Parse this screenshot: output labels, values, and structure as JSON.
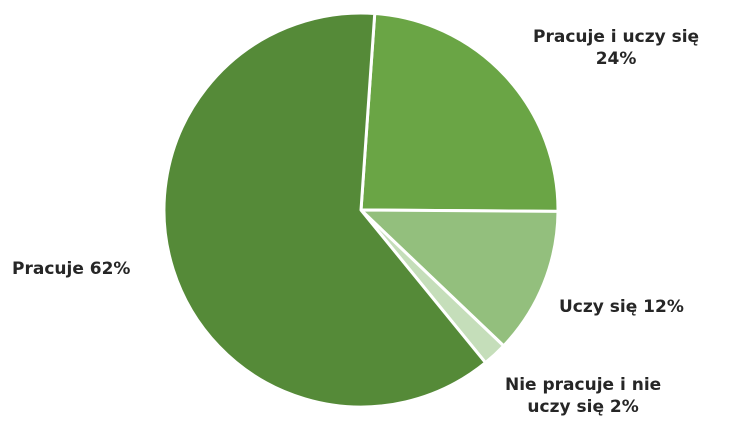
{
  "chart_data": {
    "type": "pie",
    "title": "",
    "slices": [
      {
        "label": "Pracuje i uczy się",
        "value": 24,
        "color": "#6aa545",
        "display": [
          "Pracuje i uczy się",
          "24%"
        ]
      },
      {
        "label": "Uczy się",
        "value": 12,
        "color": "#93bf7d",
        "display": [
          "Uczy się 12%"
        ]
      },
      {
        "label": "Nie pracuje i nie uczy się",
        "value": 2,
        "color": "#c5deba",
        "display": [
          "Nie pracuje i nie",
          "uczy się 2%"
        ]
      },
      {
        "label": "Pracuje",
        "value": 62,
        "color": "#558a38",
        "display": [
          "Pracuje 62%"
        ]
      }
    ],
    "legend": "none"
  }
}
